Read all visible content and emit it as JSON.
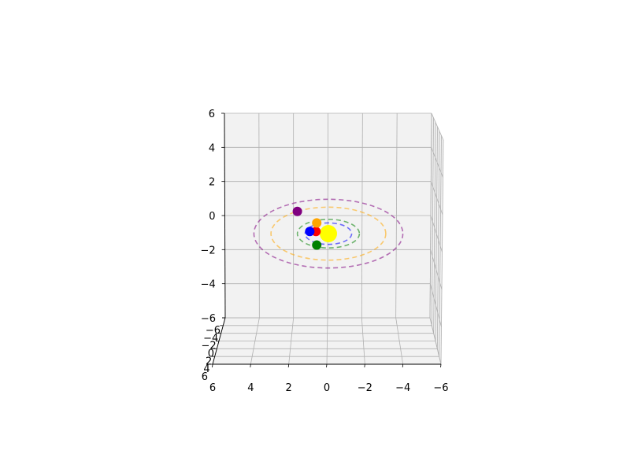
{
  "chart_data": {
    "type": "scatter",
    "projection": "3d",
    "title": "",
    "xlabel": "",
    "ylabel": "",
    "zlabel": "",
    "xlim": [
      -6,
      6
    ],
    "ylim": [
      -6,
      6
    ],
    "zlim": [
      -6,
      6
    ],
    "grid": true,
    "x_ticks": [
      "6",
      "4",
      "2",
      "0",
      "−2",
      "−4",
      "−6"
    ],
    "y_ticks": [
      "−6",
      "−4",
      "−2",
      "0",
      "2",
      "4",
      "6"
    ],
    "z_ticks": [
      "6",
      "4",
      "2",
      "0",
      "−2",
      "−4",
      "−6"
    ],
    "pane_color": "#f2f2f2",
    "central_body": {
      "x": 0,
      "y": 0,
      "z": 0,
      "color": "#ffff00"
    },
    "orbits": [
      {
        "radius": 0.4,
        "color": "#ff0000"
      },
      {
        "radius": 1.5,
        "color": "#0000ff"
      },
      {
        "radius": 2.0,
        "color": "#008000"
      },
      {
        "radius": 3.7,
        "color": "#ffa500"
      },
      {
        "radius": 4.8,
        "color": "#800080"
      }
    ],
    "planets": [
      {
        "x": 0.8,
        "y": -0.3,
        "z": 0,
        "color": "#ff0000"
      },
      {
        "x": 1.2,
        "y": -0.3,
        "z": 0,
        "color": "#0000ff"
      },
      {
        "x": 0.75,
        "y": 1.6,
        "z": 0,
        "color": "#008000"
      },
      {
        "x": 0.75,
        "y": -1.5,
        "z": 0,
        "color": "#ffa500"
      },
      {
        "x": 2.0,
        "y": -3.1,
        "z": 0,
        "color": "#800080"
      }
    ]
  }
}
